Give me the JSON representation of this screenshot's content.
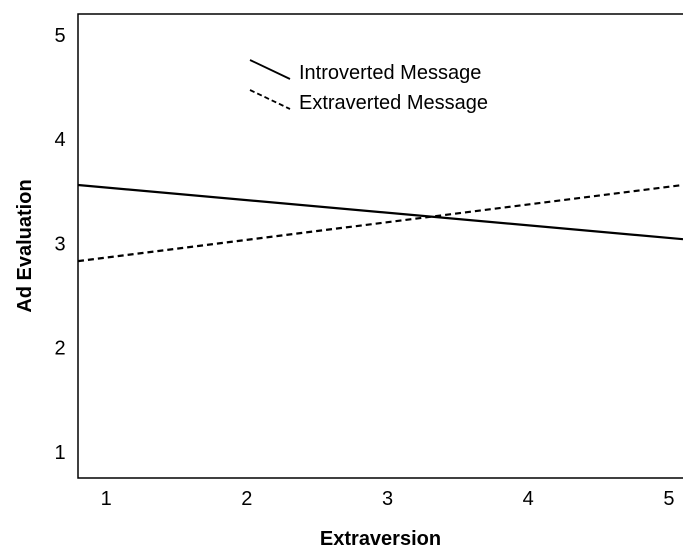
{
  "chart_data": {
    "type": "line",
    "title": "",
    "xlabel": "Extraversion",
    "ylabel": "Ad Evaluation",
    "x_ticks": [
      "1",
      "2",
      "3",
      "4",
      "5"
    ],
    "y_ticks": [
      "1",
      "2",
      "3",
      "4",
      "5"
    ],
    "xlim": [
      0.8,
      5.1
    ],
    "ylim": [
      0.75,
      5.2
    ],
    "grid": false,
    "legend_position": "top-center",
    "series": [
      {
        "name": "Introverted Message",
        "line_style": "solid",
        "color": "#000000",
        "points": [
          [
            0.8,
            3.56
          ],
          [
            5.1,
            3.04
          ]
        ]
      },
      {
        "name": "Extraverted Message",
        "line_style": "dashed",
        "color": "#000000",
        "points": [
          [
            0.8,
            2.83
          ],
          [
            5.1,
            3.56
          ]
        ]
      }
    ]
  }
}
